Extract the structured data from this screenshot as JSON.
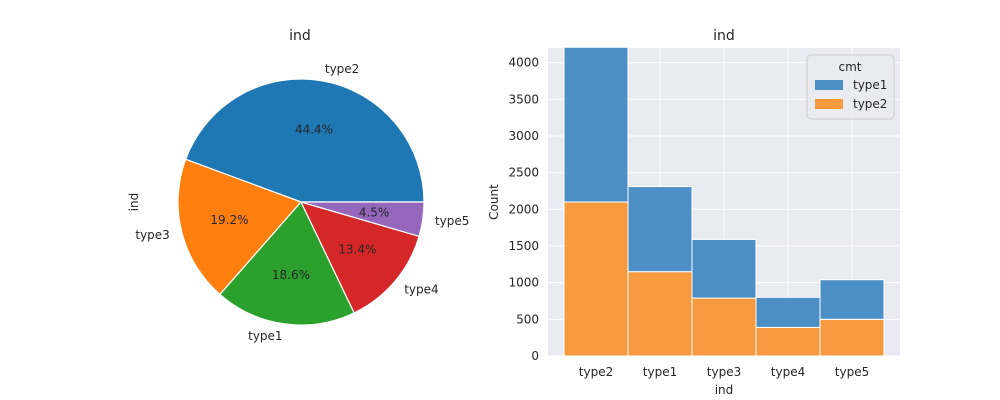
{
  "chart_data": [
    {
      "type": "pie",
      "title": "ind",
      "ylabel": "ind",
      "slices": [
        {
          "label": "type2",
          "value": 44.4,
          "pct_label": "44.4%",
          "color": "#1f77b4"
        },
        {
          "label": "type3",
          "value": 19.2,
          "pct_label": "19.2%",
          "color": "#ff7f0e"
        },
        {
          "label": "type1",
          "value": 18.6,
          "pct_label": "18.6%",
          "color": "#2ca02c"
        },
        {
          "label": "type4",
          "value": 13.4,
          "pct_label": "13.4%",
          "color": "#d62728"
        },
        {
          "label": "type5",
          "value": 4.5,
          "pct_label": "4.5%",
          "color": "#9467bd"
        }
      ]
    },
    {
      "type": "bar",
      "stacked": true,
      "title": "ind",
      "xlabel": "ind",
      "ylabel": "Count",
      "categories": [
        "type2",
        "type1",
        "type3",
        "type4",
        "type5"
      ],
      "series": [
        {
          "name": "type1",
          "values": [
            2110,
            1160,
            800,
            410,
            540
          ],
          "color": "#4c8fc6"
        },
        {
          "name": "type2",
          "values": [
            2100,
            1150,
            790,
            390,
            500
          ],
          "color": "#f7993e"
        }
      ],
      "ylim": [
        0,
        4200
      ],
      "yticks": [
        0,
        500,
        1000,
        1500,
        2000,
        2500,
        3000,
        3500,
        4000
      ],
      "grid": true,
      "legend": {
        "title": "cmt",
        "position": "top-right",
        "entries": [
          "type1",
          "type2"
        ]
      }
    }
  ]
}
